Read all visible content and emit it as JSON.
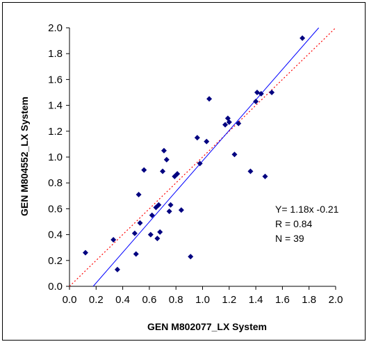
{
  "chart_data": {
    "type": "scatter",
    "title": "",
    "xlabel": "GEN M802077_LX System",
    "ylabel": "GEN M804552_LX System",
    "xlim": [
      0.0,
      2.0
    ],
    "ylim": [
      0.0,
      2.0
    ],
    "x_ticks": [
      "0.0",
      "0.2",
      "0.4",
      "0.6",
      "0.8",
      "1.0",
      "1.2",
      "1.4",
      "1.6",
      "1.8",
      "2.0"
    ],
    "y_ticks": [
      "0.0",
      "0.2",
      "0.4",
      "0.6",
      "0.8",
      "1.0",
      "1.2",
      "1.4",
      "1.6",
      "1.8",
      "2.0"
    ],
    "grid": false,
    "marker_color": "#000080",
    "fit_line": {
      "slope": 1.18,
      "intercept": -0.21,
      "color": "#0000ff"
    },
    "identity_line": {
      "slope": 1.0,
      "intercept": 0.0,
      "style": "dotted",
      "color": "#ff0000"
    },
    "stats": {
      "equation": "Y= 1.18x -0.21",
      "r": "R = 0.84",
      "n": "N = 39"
    },
    "points": [
      [
        0.12,
        0.26
      ],
      [
        0.33,
        0.36
      ],
      [
        0.36,
        0.13
      ],
      [
        0.49,
        0.41
      ],
      [
        0.5,
        0.25
      ],
      [
        0.52,
        0.71
      ],
      [
        0.53,
        0.49
      ],
      [
        0.56,
        0.9
      ],
      [
        0.61,
        0.4
      ],
      [
        0.62,
        0.55
      ],
      [
        0.65,
        0.61
      ],
      [
        0.66,
        0.37
      ],
      [
        0.67,
        0.63
      ],
      [
        0.68,
        0.42
      ],
      [
        0.7,
        0.89
      ],
      [
        0.71,
        1.05
      ],
      [
        0.73,
        0.98
      ],
      [
        0.75,
        0.58
      ],
      [
        0.76,
        0.63
      ],
      [
        0.79,
        0.85
      ],
      [
        0.81,
        0.87
      ],
      [
        0.84,
        0.59
      ],
      [
        0.91,
        0.23
      ],
      [
        0.96,
        1.15
      ],
      [
        0.98,
        0.95
      ],
      [
        1.03,
        1.12
      ],
      [
        1.05,
        1.45
      ],
      [
        1.17,
        1.25
      ],
      [
        1.19,
        1.3
      ],
      [
        1.2,
        1.27
      ],
      [
        1.24,
        1.02
      ],
      [
        1.27,
        1.26
      ],
      [
        1.36,
        0.89
      ],
      [
        1.4,
        1.43
      ],
      [
        1.41,
        1.5
      ],
      [
        1.44,
        1.49
      ],
      [
        1.47,
        0.85
      ],
      [
        1.52,
        1.5
      ],
      [
        1.75,
        1.92
      ]
    ]
  }
}
